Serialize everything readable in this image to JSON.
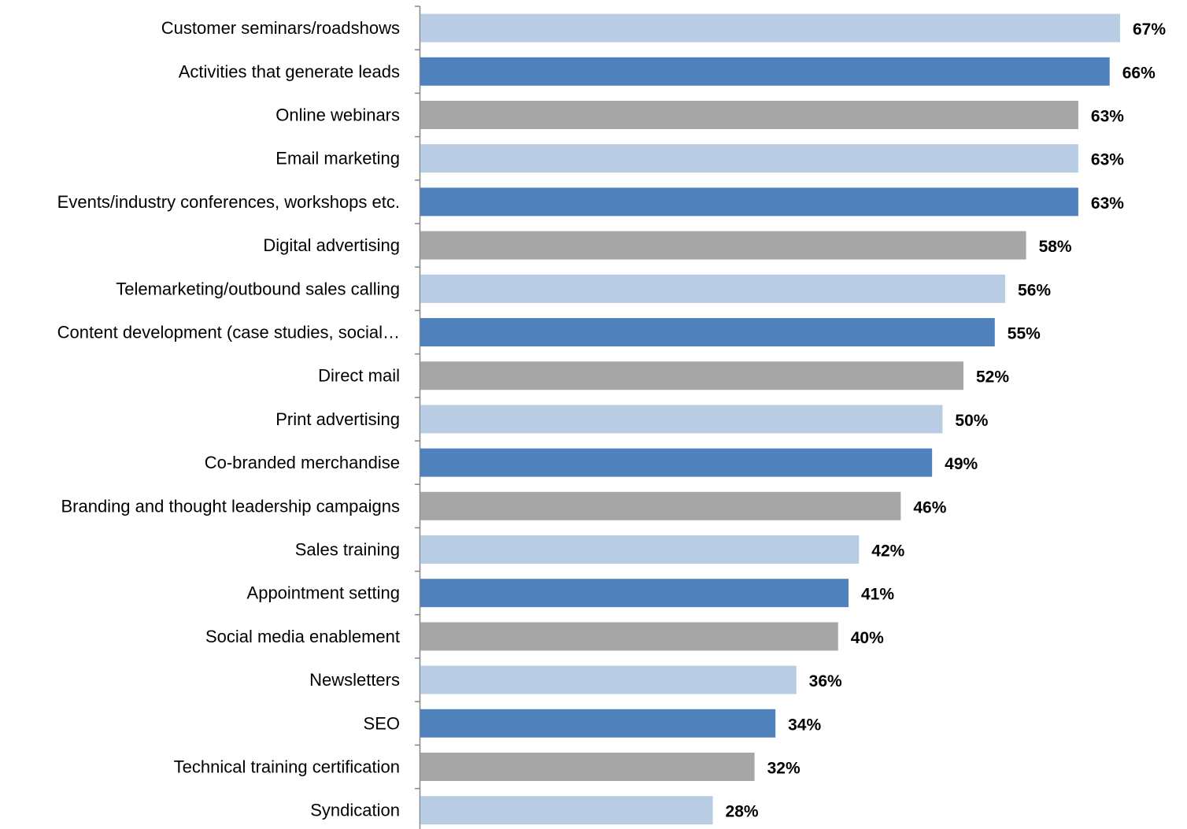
{
  "chart_data": {
    "type": "bar",
    "orientation": "horizontal",
    "categories": [
      "Customer seminars/roadshows",
      "Activities that generate leads",
      "Online webinars",
      "Email marketing",
      "Events/industry conferences, workshops etc.",
      "Digital advertising",
      "Telemarketing/outbound sales calling",
      "Content development (case studies, social…",
      "Direct mail",
      "Print advertising",
      "Co-branded merchandise",
      "Branding and thought leadership campaigns",
      "Sales training",
      "Appointment setting",
      "Social media enablement",
      "Newsletters",
      "SEO",
      "Technical training certification",
      "Syndication"
    ],
    "values": [
      67,
      66,
      63,
      63,
      63,
      58,
      56,
      55,
      52,
      50,
      49,
      46,
      42,
      41,
      40,
      36,
      34,
      32,
      28
    ],
    "value_labels": [
      "67%",
      "66%",
      "63%",
      "63%",
      "63%",
      "58%",
      "56%",
      "55%",
      "52%",
      "50%",
      "49%",
      "46%",
      "42%",
      "41%",
      "40%",
      "36%",
      "34%",
      "32%",
      "28%"
    ],
    "bar_colors": [
      "#b8cce4",
      "#4f81bd",
      "#a6a6a6",
      "#b8cce4",
      "#4f81bd",
      "#a6a6a6",
      "#b8cce4",
      "#4f81bd",
      "#a6a6a6",
      "#b8cce4",
      "#4f81bd",
      "#a6a6a6",
      "#b8cce4",
      "#4f81bd",
      "#a6a6a6",
      "#b8cce4",
      "#4f81bd",
      "#a6a6a6",
      "#b8cce4"
    ],
    "title": "",
    "xlabel": "",
    "ylabel": "",
    "xlim": [
      0,
      67
    ],
    "grid": false,
    "legend": "none",
    "axis_color": "#868686"
  }
}
